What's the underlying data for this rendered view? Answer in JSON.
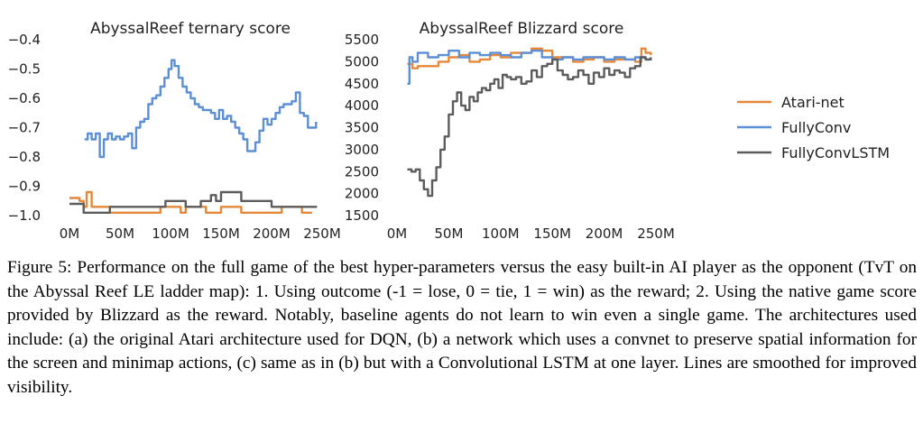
{
  "chart_data": [
    {
      "type": "line",
      "title": "AbyssalReef ternary score",
      "xlabel": "",
      "ylabel": "",
      "xlim": [
        0,
        250
      ],
      "ylim": [
        -1.0,
        -0.4
      ],
      "xticks": [
        0,
        50,
        100,
        150,
        200,
        250
      ],
      "xtick_labels": [
        "0M",
        "50M",
        "100M",
        "150M",
        "200M",
        "250M"
      ],
      "yticks": [
        -0.4,
        -0.5,
        -0.6,
        -0.7,
        -0.8,
        -0.9,
        -1.0
      ],
      "ytick_labels": [
        "−0.4",
        "−0.5",
        "−0.6",
        "−0.7",
        "−0.8",
        "−0.9",
        "−1.0"
      ],
      "grid": false,
      "series": [
        {
          "name": "Atari-net",
          "color": "#e6883a",
          "x": [
            0,
            10,
            14,
            17,
            22,
            30,
            40,
            50,
            60,
            70,
            80,
            90,
            100,
            110,
            115,
            125,
            135,
            145,
            150,
            160,
            170,
            180,
            190,
            200,
            210,
            220,
            230,
            240
          ],
          "y": [
            -0.94,
            -0.95,
            -0.97,
            -0.92,
            -0.97,
            -0.97,
            -0.99,
            -0.99,
            -0.99,
            -0.99,
            -0.99,
            -0.97,
            -0.97,
            -0.99,
            -0.97,
            -0.97,
            -0.99,
            -0.99,
            -0.97,
            -0.97,
            -0.99,
            -0.99,
            -0.99,
            -0.99,
            -0.97,
            -0.97,
            -0.99,
            -0.99
          ]
        },
        {
          "name": "FullyConv",
          "color": "#5b8fd6",
          "x": [
            15,
            18,
            22,
            26,
            30,
            34,
            38,
            42,
            46,
            50,
            54,
            58,
            62,
            66,
            70,
            74,
            78,
            82,
            86,
            90,
            94,
            98,
            101,
            104,
            108,
            112,
            116,
            120,
            124,
            128,
            132,
            136,
            140,
            144,
            148,
            152,
            156,
            160,
            164,
            168,
            172,
            176,
            180,
            184,
            188,
            192,
            196,
            200,
            204,
            208,
            212,
            216,
            220,
            224,
            228,
            232,
            236,
            240,
            244
          ],
          "y": [
            -0.74,
            -0.72,
            -0.74,
            -0.72,
            -0.8,
            -0.74,
            -0.72,
            -0.74,
            -0.73,
            -0.74,
            -0.73,
            -0.72,
            -0.77,
            -0.7,
            -0.68,
            -0.67,
            -0.62,
            -0.6,
            -0.59,
            -0.56,
            -0.53,
            -0.5,
            -0.47,
            -0.49,
            -0.53,
            -0.56,
            -0.58,
            -0.6,
            -0.62,
            -0.63,
            -0.64,
            -0.64,
            -0.65,
            -0.67,
            -0.64,
            -0.67,
            -0.66,
            -0.68,
            -0.7,
            -0.72,
            -0.74,
            -0.78,
            -0.78,
            -0.75,
            -0.71,
            -0.67,
            -0.69,
            -0.67,
            -0.65,
            -0.63,
            -0.62,
            -0.62,
            -0.61,
            -0.58,
            -0.65,
            -0.66,
            -0.7,
            -0.7,
            -0.68
          ]
        },
        {
          "name": "FullyConvLSTM",
          "color": "#5c5c5c",
          "x": [
            0,
            10,
            14,
            20,
            30,
            40,
            50,
            60,
            70,
            80,
            90,
            95,
            105,
            115,
            130,
            140,
            145,
            150,
            160,
            170,
            180,
            190,
            200,
            210,
            220,
            230,
            240,
            245
          ],
          "y": [
            -0.96,
            -0.96,
            -0.99,
            -0.99,
            -0.99,
            -0.97,
            -0.97,
            -0.97,
            -0.97,
            -0.97,
            -0.97,
            -0.95,
            -0.95,
            -0.97,
            -0.95,
            -0.93,
            -0.95,
            -0.92,
            -0.92,
            -0.95,
            -0.95,
            -0.95,
            -0.97,
            -0.97,
            -0.97,
            -0.97,
            -0.97,
            -0.97
          ]
        }
      ]
    },
    {
      "type": "line",
      "title": "AbyssalReef Blizzard score",
      "xlabel": "",
      "ylabel": "",
      "xlim": [
        0,
        250
      ],
      "ylim": [
        1500,
        5500
      ],
      "xticks": [
        0,
        50,
        100,
        150,
        200,
        250
      ],
      "xtick_labels": [
        "0M",
        "50M",
        "100M",
        "150M",
        "200M",
        "250M"
      ],
      "yticks": [
        1500,
        2000,
        2500,
        3000,
        3500,
        4000,
        4500,
        5000,
        5500
      ],
      "ytick_labels": [
        "1500",
        "2000",
        "2500",
        "3000",
        "3500",
        "4000",
        "4500",
        "5000",
        "5500"
      ],
      "grid": false,
      "series": [
        {
          "name": "Atari-net",
          "color": "#e6883a",
          "x": [
            10,
            15,
            20,
            30,
            40,
            50,
            60,
            70,
            80,
            90,
            100,
            110,
            120,
            130,
            140,
            150,
            160,
            170,
            180,
            190,
            200,
            210,
            220,
            230,
            236,
            240,
            245
          ],
          "y": [
            4950,
            4850,
            4900,
            4900,
            5000,
            5100,
            5150,
            5000,
            5050,
            5150,
            5100,
            5200,
            5200,
            5300,
            5250,
            5100,
            5100,
            5000,
            5050,
            5100,
            5000,
            5050,
            5050,
            5000,
            5300,
            5200,
            5150
          ]
        },
        {
          "name": "FullyConv",
          "color": "#5b8fd6",
          "x": [
            10,
            12,
            15,
            20,
            30,
            40,
            50,
            60,
            70,
            80,
            90,
            100,
            110,
            120,
            130,
            140,
            150,
            160,
            170,
            180,
            190,
            200,
            210,
            220,
            230,
            240,
            245
          ],
          "y": [
            4500,
            5100,
            5000,
            5200,
            5100,
            5150,
            5250,
            5100,
            5200,
            5150,
            5200,
            5150,
            5100,
            5200,
            5250,
            5100,
            5050,
            5100,
            5050,
            5100,
            5100,
            5050,
            5100,
            5050,
            5100,
            5050,
            5100
          ]
        },
        {
          "name": "FullyConvLSTM",
          "color": "#5c5c5c",
          "x": [
            10,
            14,
            18,
            22,
            26,
            30,
            34,
            38,
            42,
            46,
            50,
            54,
            58,
            62,
            66,
            70,
            74,
            78,
            82,
            86,
            90,
            94,
            98,
            102,
            106,
            110,
            115,
            120,
            125,
            130,
            135,
            140,
            145,
            150,
            155,
            160,
            165,
            170,
            175,
            180,
            185,
            190,
            195,
            200,
            205,
            210,
            215,
            220,
            225,
            230,
            235,
            240,
            245
          ],
          "y": [
            2550,
            2500,
            2550,
            2300,
            2100,
            1950,
            2300,
            2600,
            3000,
            3300,
            3800,
            4100,
            4300,
            4000,
            3900,
            4200,
            4100,
            4300,
            4400,
            4350,
            4500,
            4600,
            4400,
            4700,
            4650,
            4600,
            4650,
            4500,
            4550,
            4800,
            4650,
            4900,
            4950,
            5050,
            4800,
            4700,
            4600,
            4650,
            4800,
            4700,
            4500,
            4750,
            4650,
            4850,
            4700,
            4800,
            4750,
            4650,
            4850,
            4900,
            5100,
            5050,
            5100
          ]
        }
      ]
    }
  ],
  "legend": {
    "placement": "right",
    "items": [
      {
        "label": "Atari-net",
        "color": "#e6883a"
      },
      {
        "label": "FullyConv",
        "color": "#5b8fd6"
      },
      {
        "label": "FullyConvLSTM",
        "color": "#5c5c5c"
      }
    ]
  },
  "caption": "Figure 5: Performance on the full game of the best hyper-parameters versus the easy built-in AI player as the opponent (TvT on the Abyssal Reef LE ladder map): 1. Using outcome (-1 = lose, 0 = tie, 1 = win) as the reward; 2. Using the native game score provided by Blizzard as the reward. Notably, baseline agents do not learn to win even a single game. The architectures used include: (a) the original Atari architecture used for DQN, (b) a network which uses a convnet to preserve spatial information for the screen and minimap actions, (c) same as in (b) but with a Convolutional LSTM at one layer. Lines are smoothed for improved visibility."
}
